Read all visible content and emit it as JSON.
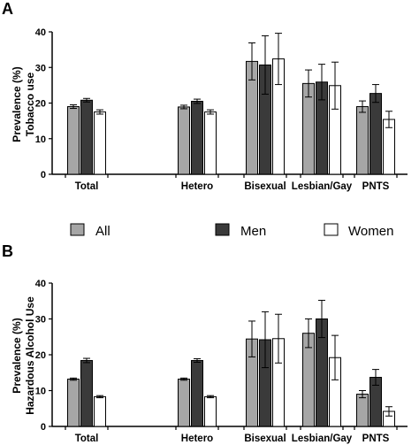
{
  "colors": {
    "All": "#a6a6a6",
    "Men": "#3a3a3a",
    "Women": "#ffffff",
    "stroke": "#000000"
  },
  "legend": {
    "items": [
      "All",
      "Men",
      "Women"
    ]
  },
  "chart_data": [
    {
      "type": "bar",
      "panel": "A",
      "title": "",
      "ylabel": "Prevalence (%)",
      "ylabel2": "Tobacco use",
      "xlabel": "",
      "ylim": [
        0,
        40
      ],
      "yticks": [
        0,
        10,
        20,
        30,
        40
      ],
      "categories": [
        "Total",
        "Hetero",
        "Bisexual",
        "Lesbian/Gay",
        "PNTS"
      ],
      "series": [
        {
          "name": "All",
          "values": [
            19.0,
            18.9,
            31.7,
            25.5,
            19.0
          ],
          "err": [
            0.5,
            0.5,
            5.2,
            3.8,
            1.6
          ]
        },
        {
          "name": "Men",
          "values": [
            20.8,
            20.5,
            30.7,
            25.9,
            22.7
          ],
          "err": [
            0.5,
            0.6,
            8.2,
            5.0,
            2.5
          ]
        },
        {
          "name": "Women",
          "values": [
            17.5,
            17.5,
            32.4,
            24.9,
            15.4
          ],
          "err": [
            0.6,
            0.6,
            7.2,
            6.6,
            2.3
          ]
        }
      ]
    },
    {
      "type": "bar",
      "panel": "B",
      "title": "",
      "ylabel": "Prevalence (%)",
      "ylabel2": "Hazardous Alcohol Use",
      "xlabel": "",
      "ylim": [
        0,
        40
      ],
      "yticks": [
        0,
        10,
        20,
        30,
        40
      ],
      "categories": [
        "Total",
        "Hetero",
        "Bisexual",
        "Lesbian/Gay",
        "PNTS"
      ],
      "series": [
        {
          "name": "All",
          "values": [
            13.2,
            13.2,
            24.4,
            26.0,
            9.0
          ],
          "err": [
            0.3,
            0.3,
            5.0,
            4.0,
            1.0
          ]
        },
        {
          "name": "Men",
          "values": [
            18.4,
            18.4,
            24.2,
            30.0,
            13.7
          ],
          "err": [
            0.6,
            0.5,
            7.8,
            5.2,
            2.2
          ]
        },
        {
          "name": "Women",
          "values": [
            8.3,
            8.3,
            24.5,
            19.2,
            4.2
          ],
          "err": [
            0.3,
            0.3,
            6.8,
            6.2,
            1.3
          ]
        }
      ]
    }
  ]
}
